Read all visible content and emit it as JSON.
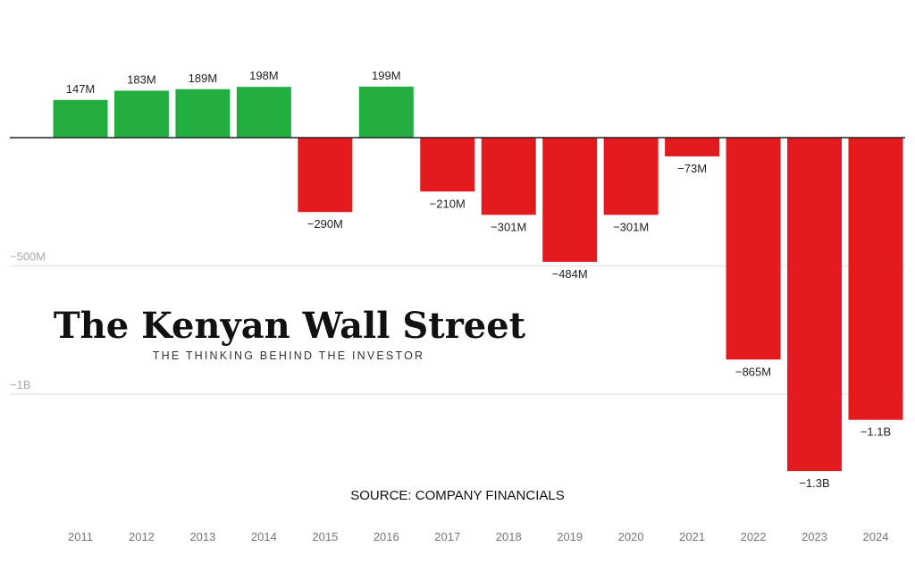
{
  "chart_data": {
    "type": "bar",
    "title": "",
    "xlabel": "",
    "ylabel": "",
    "categories": [
      "2011",
      "2012",
      "2013",
      "2014",
      "2015",
      "2016",
      "2017",
      "2018",
      "2019",
      "2020",
      "2021",
      "2022",
      "2023",
      "2024"
    ],
    "values": [
      147000000,
      183000000,
      189000000,
      198000000,
      -290000000,
      199000000,
      -210000000,
      -301000000,
      -484000000,
      -301000000,
      -73000000,
      -865000000,
      -1300000000,
      -1100000000
    ],
    "data_labels": [
      "147M",
      "183M",
      "189M",
      "198M",
      "−290M",
      "199M",
      "−210M",
      "−301M",
      "−484M",
      "−301M",
      "−73M",
      "−865M",
      "−1.3B",
      "−1.1B"
    ],
    "y_ticks": [
      {
        "value": -500000000,
        "label": "−500M"
      },
      {
        "value": -1000000000,
        "label": "−1B"
      }
    ],
    "ylim": [
      -1450000000,
      500000000
    ],
    "grid": true,
    "colors": {
      "positive": "#22ae40",
      "negative": "#e31b1e",
      "zero_line": "#222222",
      "grid": "#e6e6e6"
    },
    "source": "SOURCE: COMPANY FINANCIALS"
  },
  "watermark": {
    "title": "The Kenyan Wall Street",
    "tagline": "THE THINKING BEHIND THE INVESTOR"
  }
}
